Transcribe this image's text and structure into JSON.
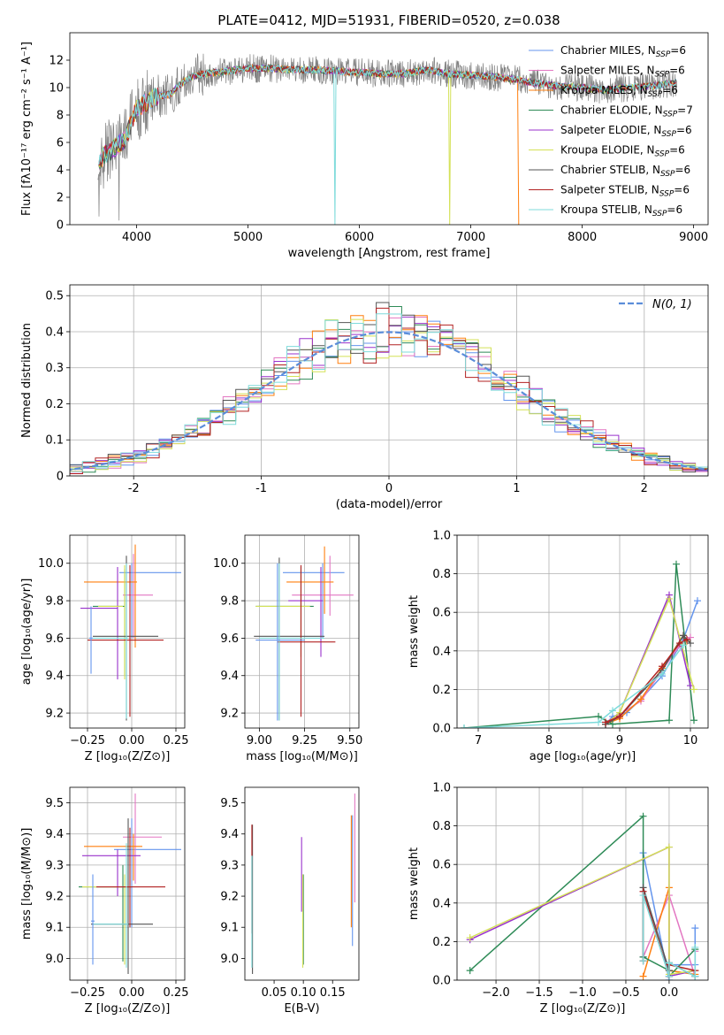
{
  "colors": [
    "#6495ed",
    "#e377c2",
    "#ff7f0e",
    "#2e8b57",
    "#9932cc",
    "#d4e157",
    "#555555",
    "#b22222",
    "#7fdbdb"
  ],
  "chart_data": [
    {
      "id": "spectrum",
      "type": "line",
      "title": "PLATE=0412, MJD=51931, FIBERID=0520, z=0.038",
      "xlabel": "wavelength [Angstrom, rest frame]",
      "ylabel": "Flux [fλ10⁻¹⁷ erg cm⁻² s⁻¹ A⁻¹]",
      "xlim": [
        3400,
        9130
      ],
      "ylim": [
        0,
        14
      ],
      "xticks": [
        4000,
        5000,
        6000,
        7000,
        8000,
        9000
      ],
      "yticks": [
        0,
        2,
        4,
        6,
        8,
        10,
        12
      ],
      "grid": false,
      "legend_position": "top-right",
      "legend": [
        "Chabrier MILES, N_SSP=6",
        "Salpeter MILES, N_SSP=6",
        "Kroupa MILES, N_SSP=6",
        "Chabrier ELODIE, N_SSP=7",
        "Salpeter ELODIE, N_SSP=6",
        "Kroupa ELODIE, N_SSP=6",
        "Chabrier STELIB, N_SSP=6",
        "Salpeter STELIB, N_SSP=6",
        "Kroupa STELIB, N_SSP=6"
      ],
      "continuum": {
        "x": [
          3650,
          3700,
          3800,
          3900,
          3950,
          4000,
          4100,
          4200,
          4300,
          4400,
          4500,
          4600,
          4800,
          5000,
          5200,
          5400,
          5600,
          5800,
          6000,
          6200,
          6400,
          6600,
          6800,
          7000,
          7200,
          7400,
          7600,
          7800,
          8000,
          8200,
          8400,
          8600,
          8800,
          8850
        ],
        "y": [
          4.4,
          5.0,
          5.6,
          6.2,
          7.5,
          8.4,
          9.0,
          9.4,
          9.5,
          10.3,
          10.8,
          11.0,
          11.2,
          11.4,
          11.4,
          11.3,
          11.3,
          11.2,
          11.1,
          11.0,
          11.0,
          11.3,
          11.0,
          10.9,
          10.8,
          10.6,
          10.3,
          10.1,
          10.0,
          9.8,
          10.0,
          10.1,
          10.3,
          10.4
        ]
      },
      "dropouts": [
        {
          "model": 8,
          "x": 5780
        },
        {
          "model": 5,
          "x": 6810
        },
        {
          "model": 2,
          "x": 7430
        }
      ]
    },
    {
      "id": "residuals",
      "type": "histogram",
      "xlabel": "(data-model)/error",
      "ylabel": "Normed distribution",
      "xlim": [
        -2.5,
        2.5
      ],
      "ylim": [
        0,
        0.53
      ],
      "xticks": [
        -2,
        -1,
        0,
        1,
        2
      ],
      "yticks": [
        0.0,
        0.1,
        0.2,
        0.3,
        0.4,
        0.5
      ],
      "grid": true,
      "legend_position": "top-right",
      "reference_curve": {
        "name": "N(0, 1)",
        "mean": 0,
        "sigma": 1
      },
      "bin_width": 0.1
    },
    {
      "id": "age-vs-Z",
      "type": "errorbar",
      "xlabel": "Z [log₁₀(Z/Z⊙)]",
      "ylabel": "age  [log₁₀(age/yr)]",
      "xlim": [
        -0.35,
        0.3
      ],
      "ylim": [
        9.12,
        10.15
      ],
      "xticks": [
        -0.25,
        0.0,
        0.25
      ],
      "xticklabels": [
        "−0.25",
        "0.00",
        "0.25"
      ],
      "yticks": [
        9.2,
        9.4,
        9.6,
        9.8,
        10.0
      ],
      "yticklabels": [
        "9.2",
        "9.4",
        "9.6",
        "9.8",
        "10.0"
      ],
      "grid": true,
      "points": [
        {
          "x": 0.0,
          "xlo": -0.07,
          "xhi": 0.28,
          "y": 9.95,
          "ylo": 9.6,
          "yhi": 10.0
        },
        {
          "x": 0.01,
          "xlo": -0.05,
          "xhi": 0.12,
          "y": 9.83,
          "ylo": 9.6,
          "yhi": 10.05
        },
        {
          "x": 0.02,
          "xlo": -0.27,
          "xhi": 0.03,
          "y": 9.9,
          "ylo": 9.55,
          "yhi": 10.1
        },
        {
          "x": -0.04,
          "xlo": -0.22,
          "xhi": -0.04,
          "y": 9.77,
          "ylo": 9.4,
          "yhi": 9.97
        },
        {
          "x": -0.08,
          "xlo": -0.29,
          "xhi": -0.08,
          "y": 9.76,
          "ylo": 9.38,
          "yhi": 9.98
        },
        {
          "x": -0.04,
          "xlo": -0.19,
          "xhi": -0.05,
          "y": 9.77,
          "ylo": 9.38,
          "yhi": 9.99
        },
        {
          "x": -0.03,
          "xlo": -0.22,
          "xhi": 0.15,
          "y": 9.61,
          "ylo": 9.16,
          "yhi": 10.04
        },
        {
          "x": -0.01,
          "xlo": -0.25,
          "xhi": 0.18,
          "y": 9.59,
          "ylo": 9.18,
          "yhi": 9.99
        },
        {
          "x": -0.03,
          "xlo": -0.24,
          "xhi": -0.02,
          "y": 9.6,
          "ylo": 9.17,
          "yhi": 10.0
        },
        {
          "x": -0.23,
          "xlo": -0.24,
          "xhi": -0.22,
          "y": 9.6,
          "ylo": 9.41,
          "yhi": 9.77
        }
      ]
    },
    {
      "id": "age-vs-mass",
      "type": "errorbar",
      "xlabel": "mass [log₁₀(M/M⊙)]",
      "ylabel": "",
      "xlim": [
        8.92,
        9.55
      ],
      "ylim": [
        9.12,
        10.15
      ],
      "xticks": [
        9.0,
        9.25,
        9.5
      ],
      "xticklabels": [
        "9.00",
        "9.25",
        "9.50"
      ],
      "yticks": [
        9.2,
        9.4,
        9.6,
        9.8,
        10.0
      ],
      "yticklabels": [
        "9.2",
        "9.4",
        "9.6",
        "9.8",
        "10.0"
      ],
      "grid": true,
      "points": [
        {
          "x": 9.35,
          "xlo": 9.13,
          "xhi": 9.47,
          "y": 9.95,
          "ylo": 9.6,
          "yhi": 10.0
        },
        {
          "x": 9.39,
          "xlo": 9.18,
          "xhi": 9.52,
          "y": 9.83,
          "ylo": 9.72,
          "yhi": 10.04
        },
        {
          "x": 9.36,
          "xlo": 9.15,
          "xhi": 9.41,
          "y": 9.9,
          "ylo": 9.73,
          "yhi": 10.09
        },
        {
          "x": 9.23,
          "xlo": 8.98,
          "xhi": 9.3,
          "y": 9.77,
          "ylo": 9.5,
          "yhi": 9.98
        },
        {
          "x": 9.34,
          "xlo": 9.16,
          "xhi": 9.35,
          "y": 9.8,
          "ylo": 9.5,
          "yhi": 9.98
        },
        {
          "x": 9.23,
          "xlo": 8.98,
          "xhi": 9.28,
          "y": 9.77,
          "ylo": 9.5,
          "yhi": 9.96
        },
        {
          "x": 9.11,
          "xlo": 8.97,
          "xhi": 9.36,
          "y": 9.61,
          "ylo": 9.16,
          "yhi": 10.03
        },
        {
          "x": 9.23,
          "xlo": 9.1,
          "xhi": 9.42,
          "y": 9.58,
          "ylo": 9.18,
          "yhi": 9.99
        },
        {
          "x": 9.11,
          "xlo": 9.0,
          "xhi": 9.36,
          "y": 9.6,
          "ylo": 9.16,
          "yhi": 10.0
        },
        {
          "x": 9.1,
          "xlo": 8.98,
          "xhi": 9.25,
          "y": 9.59,
          "ylo": 9.16,
          "yhi": 10.0
        }
      ]
    },
    {
      "id": "weight-vs-age",
      "type": "line",
      "xlabel": "age  [log₁₀(age/yr)]",
      "ylabel": "mass weight",
      "xlim": [
        6.7,
        10.25
      ],
      "ylim": [
        0,
        1
      ],
      "xticks": [
        7,
        8,
        9,
        10
      ],
      "xticklabels": [
        "7",
        "8",
        "9",
        "10"
      ],
      "yticks": [
        0.0,
        0.2,
        0.4,
        0.6,
        0.8,
        1.0
      ],
      "yticklabels": [
        "0.0",
        "0.2",
        "0.4",
        "0.6",
        "0.8",
        "1.0"
      ],
      "grid": true,
      "series": [
        {
          "x": [
            8.8,
            8.9,
            9.1,
            9.3,
            9.6,
            9.9,
            10.1
          ],
          "y": [
            0.02,
            0.06,
            0.08,
            0.15,
            0.27,
            0.46,
            0.66
          ]
        },
        {
          "x": [
            8.8,
            9.0,
            9.3,
            9.6,
            9.85,
            10.0
          ],
          "y": [
            0.03,
            0.07,
            0.14,
            0.3,
            0.43,
            0.47
          ]
        },
        {
          "x": [
            8.8,
            9.0,
            9.3,
            9.6,
            9.9,
            9.95
          ],
          "y": [
            0.02,
            0.05,
            0.15,
            0.31,
            0.48,
            0.45
          ]
        },
        {
          "x": [
            6.8,
            8.7,
            8.9,
            9.7,
            9.8,
            10.05
          ],
          "y": [
            0.0,
            0.06,
            0.02,
            0.04,
            0.85,
            0.04
          ]
        },
        {
          "x": [
            8.8,
            9.0,
            9.7,
            10.0
          ],
          "y": [
            0.02,
            0.08,
            0.69,
            0.22
          ]
        },
        {
          "x": [
            8.8,
            9.0,
            9.7,
            10.05
          ],
          "y": [
            0.02,
            0.08,
            0.67,
            0.2
          ]
        },
        {
          "x": [
            8.8,
            9.0,
            9.6,
            9.9,
            10.0
          ],
          "y": [
            0.02,
            0.06,
            0.3,
            0.48,
            0.44
          ]
        },
        {
          "x": [
            8.8,
            9.0,
            9.6,
            9.85,
            9.95
          ],
          "y": [
            0.03,
            0.06,
            0.32,
            0.44,
            0.46
          ]
        },
        {
          "x": [
            6.8,
            8.7,
            8.9,
            9.6,
            9.9
          ],
          "y": [
            0.0,
            0.03,
            0.09,
            0.28,
            0.43
          ]
        }
      ]
    },
    {
      "id": "mass-vs-Z",
      "type": "errorbar",
      "xlabel": "Z [log₁₀(Z/Z⊙)]",
      "ylabel": "mass [log₁₀(M/M⊙)]",
      "xlim": [
        -0.35,
        0.3
      ],
      "ylim": [
        8.93,
        9.55
      ],
      "xticks": [
        -0.25,
        0.0,
        0.25
      ],
      "xticklabels": [
        "−0.25",
        "0.00",
        "0.25"
      ],
      "yticks": [
        9.0,
        9.1,
        9.2,
        9.3,
        9.4,
        9.5
      ],
      "yticklabels": [
        "9.0",
        "9.1",
        "9.2",
        "9.3",
        "9.4",
        "9.5"
      ],
      "grid": true,
      "points": [
        {
          "x": 0.0,
          "xlo": -0.1,
          "xhi": 0.28,
          "y": 9.35,
          "ylo": 9.1,
          "yhi": 9.45
        },
        {
          "x": 0.02,
          "xlo": -0.05,
          "xhi": 0.17,
          "y": 9.39,
          "ylo": 9.24,
          "yhi": 9.53
        },
        {
          "x": 0.01,
          "xlo": -0.27,
          "xhi": 0.06,
          "y": 9.36,
          "ylo": 9.25,
          "yhi": 9.4
        },
        {
          "x": -0.05,
          "xlo": -0.3,
          "xhi": 0.0,
          "y": 9.23,
          "ylo": 8.99,
          "yhi": 9.3
        },
        {
          "x": -0.08,
          "xlo": -0.28,
          "xhi": 0.05,
          "y": 9.33,
          "ylo": 9.2,
          "yhi": 9.35
        },
        {
          "x": -0.04,
          "xlo": -0.28,
          "xhi": -0.02,
          "y": 9.23,
          "ylo": 8.98,
          "yhi": 9.27
        },
        {
          "x": -0.02,
          "xlo": -0.23,
          "xhi": 0.12,
          "y": 9.11,
          "ylo": 8.95,
          "yhi": 9.45
        },
        {
          "x": -0.01,
          "xlo": -0.2,
          "xhi": 0.19,
          "y": 9.23,
          "ylo": 9.1,
          "yhi": 9.42
        },
        {
          "x": -0.03,
          "xlo": -0.22,
          "xhi": -0.02,
          "y": 9.11,
          "ylo": 8.97,
          "yhi": 9.37
        },
        {
          "x": -0.22,
          "xlo": -0.23,
          "xhi": -0.21,
          "y": 9.12,
          "ylo": 8.98,
          "yhi": 9.27
        }
      ]
    },
    {
      "id": "mass-vs-ebv",
      "type": "errorbar",
      "xlabel": "E(B-V)",
      "ylabel": "",
      "xlim": [
        0.0,
        0.195
      ],
      "ylim": [
        8.93,
        9.55
      ],
      "xticks": [
        0.05,
        0.1,
        0.15
      ],
      "xticklabels": [
        "0.05",
        "0.10",
        "0.15"
      ],
      "yticks": [
        9.0,
        9.1,
        9.2,
        9.3,
        9.4,
        9.5
      ],
      "yticklabels": [
        "9.0",
        "9.1",
        "9.2",
        "9.3",
        "9.4",
        "9.5"
      ],
      "grid": false,
      "points": [
        {
          "x": 0.184,
          "ylo": 9.04,
          "yhi": 9.46
        },
        {
          "x": 0.188,
          "ylo": 9.18,
          "yhi": 9.53
        },
        {
          "x": 0.182,
          "ylo": 9.1,
          "yhi": 9.46
        },
        {
          "x": 0.1,
          "ylo": 8.98,
          "yhi": 9.27
        },
        {
          "x": 0.097,
          "ylo": 9.15,
          "yhi": 9.39
        },
        {
          "x": 0.099,
          "ylo": 8.97,
          "yhi": 9.27
        },
        {
          "x": 0.013,
          "ylo": 8.95,
          "yhi": 9.43
        },
        {
          "x": 0.012,
          "ylo": 9.08,
          "yhi": 9.43
        },
        {
          "x": 0.012,
          "ylo": 8.97,
          "yhi": 9.33
        }
      ]
    },
    {
      "id": "weight-vs-Z",
      "type": "line",
      "xlabel": "Z [log₁₀(Z/Z⊙)]",
      "ylabel": "mass weight",
      "xlim": [
        -2.45,
        0.45
      ],
      "ylim": [
        0,
        1
      ],
      "xticks": [
        -2.0,
        -1.5,
        -1.0,
        -0.5,
        0.0
      ],
      "xticklabels": [
        "−2.0",
        "−1.5",
        "−1.0",
        "−0.5",
        "0.0"
      ],
      "yticks": [
        0.0,
        0.2,
        0.4,
        0.6,
        0.8,
        1.0
      ],
      "yticklabels": [
        "0.0",
        "0.2",
        "0.4",
        "0.6",
        "0.8",
        "1.0"
      ],
      "grid": true,
      "series": [
        {
          "x": [
            -0.3,
            -0.3,
            0.0,
            0.0,
            0.3,
            0.3
          ],
          "y": [
            0.12,
            0.66,
            0.0,
            0.08,
            0.08,
            0.27
          ]
        },
        {
          "x": [
            -0.3,
            0.0,
            0.3,
            0.3
          ],
          "y": [
            0.12,
            0.44,
            0.02,
            0.15
          ]
        },
        {
          "x": [
            -0.3,
            0.0,
            0.0,
            0.3
          ],
          "y": [
            0.02,
            0.48,
            0.05,
            0.03
          ]
        },
        {
          "x": [
            -2.3,
            -0.3,
            -0.3,
            0.0,
            0.0,
            0.3
          ],
          "y": [
            0.05,
            0.85,
            0.12,
            0.05,
            0.02,
            0.16
          ]
        },
        {
          "x": [
            -2.3,
            0.0,
            0.0,
            0.3
          ],
          "y": [
            0.21,
            0.69,
            0.02,
            0.05
          ]
        },
        {
          "x": [
            -2.3,
            0.0,
            0.0,
            0.3
          ],
          "y": [
            0.22,
            0.69,
            0.03,
            0.05
          ]
        },
        {
          "x": [
            -0.3,
            -0.3,
            0.0,
            0.0,
            0.3
          ],
          "y": [
            0.1,
            0.48,
            0.05,
            0.09,
            0.02
          ]
        },
        {
          "x": [
            -0.3,
            -0.3,
            0.0,
            0.0,
            0.3
          ],
          "y": [
            0.1,
            0.46,
            0.02,
            0.08,
            0.05
          ]
        },
        {
          "x": [
            -0.3,
            -0.3,
            0.0,
            0.0,
            0.3,
            0.3
          ],
          "y": [
            0.1,
            0.44,
            0.02,
            0.09,
            0.02,
            0.17
          ]
        }
      ]
    }
  ]
}
